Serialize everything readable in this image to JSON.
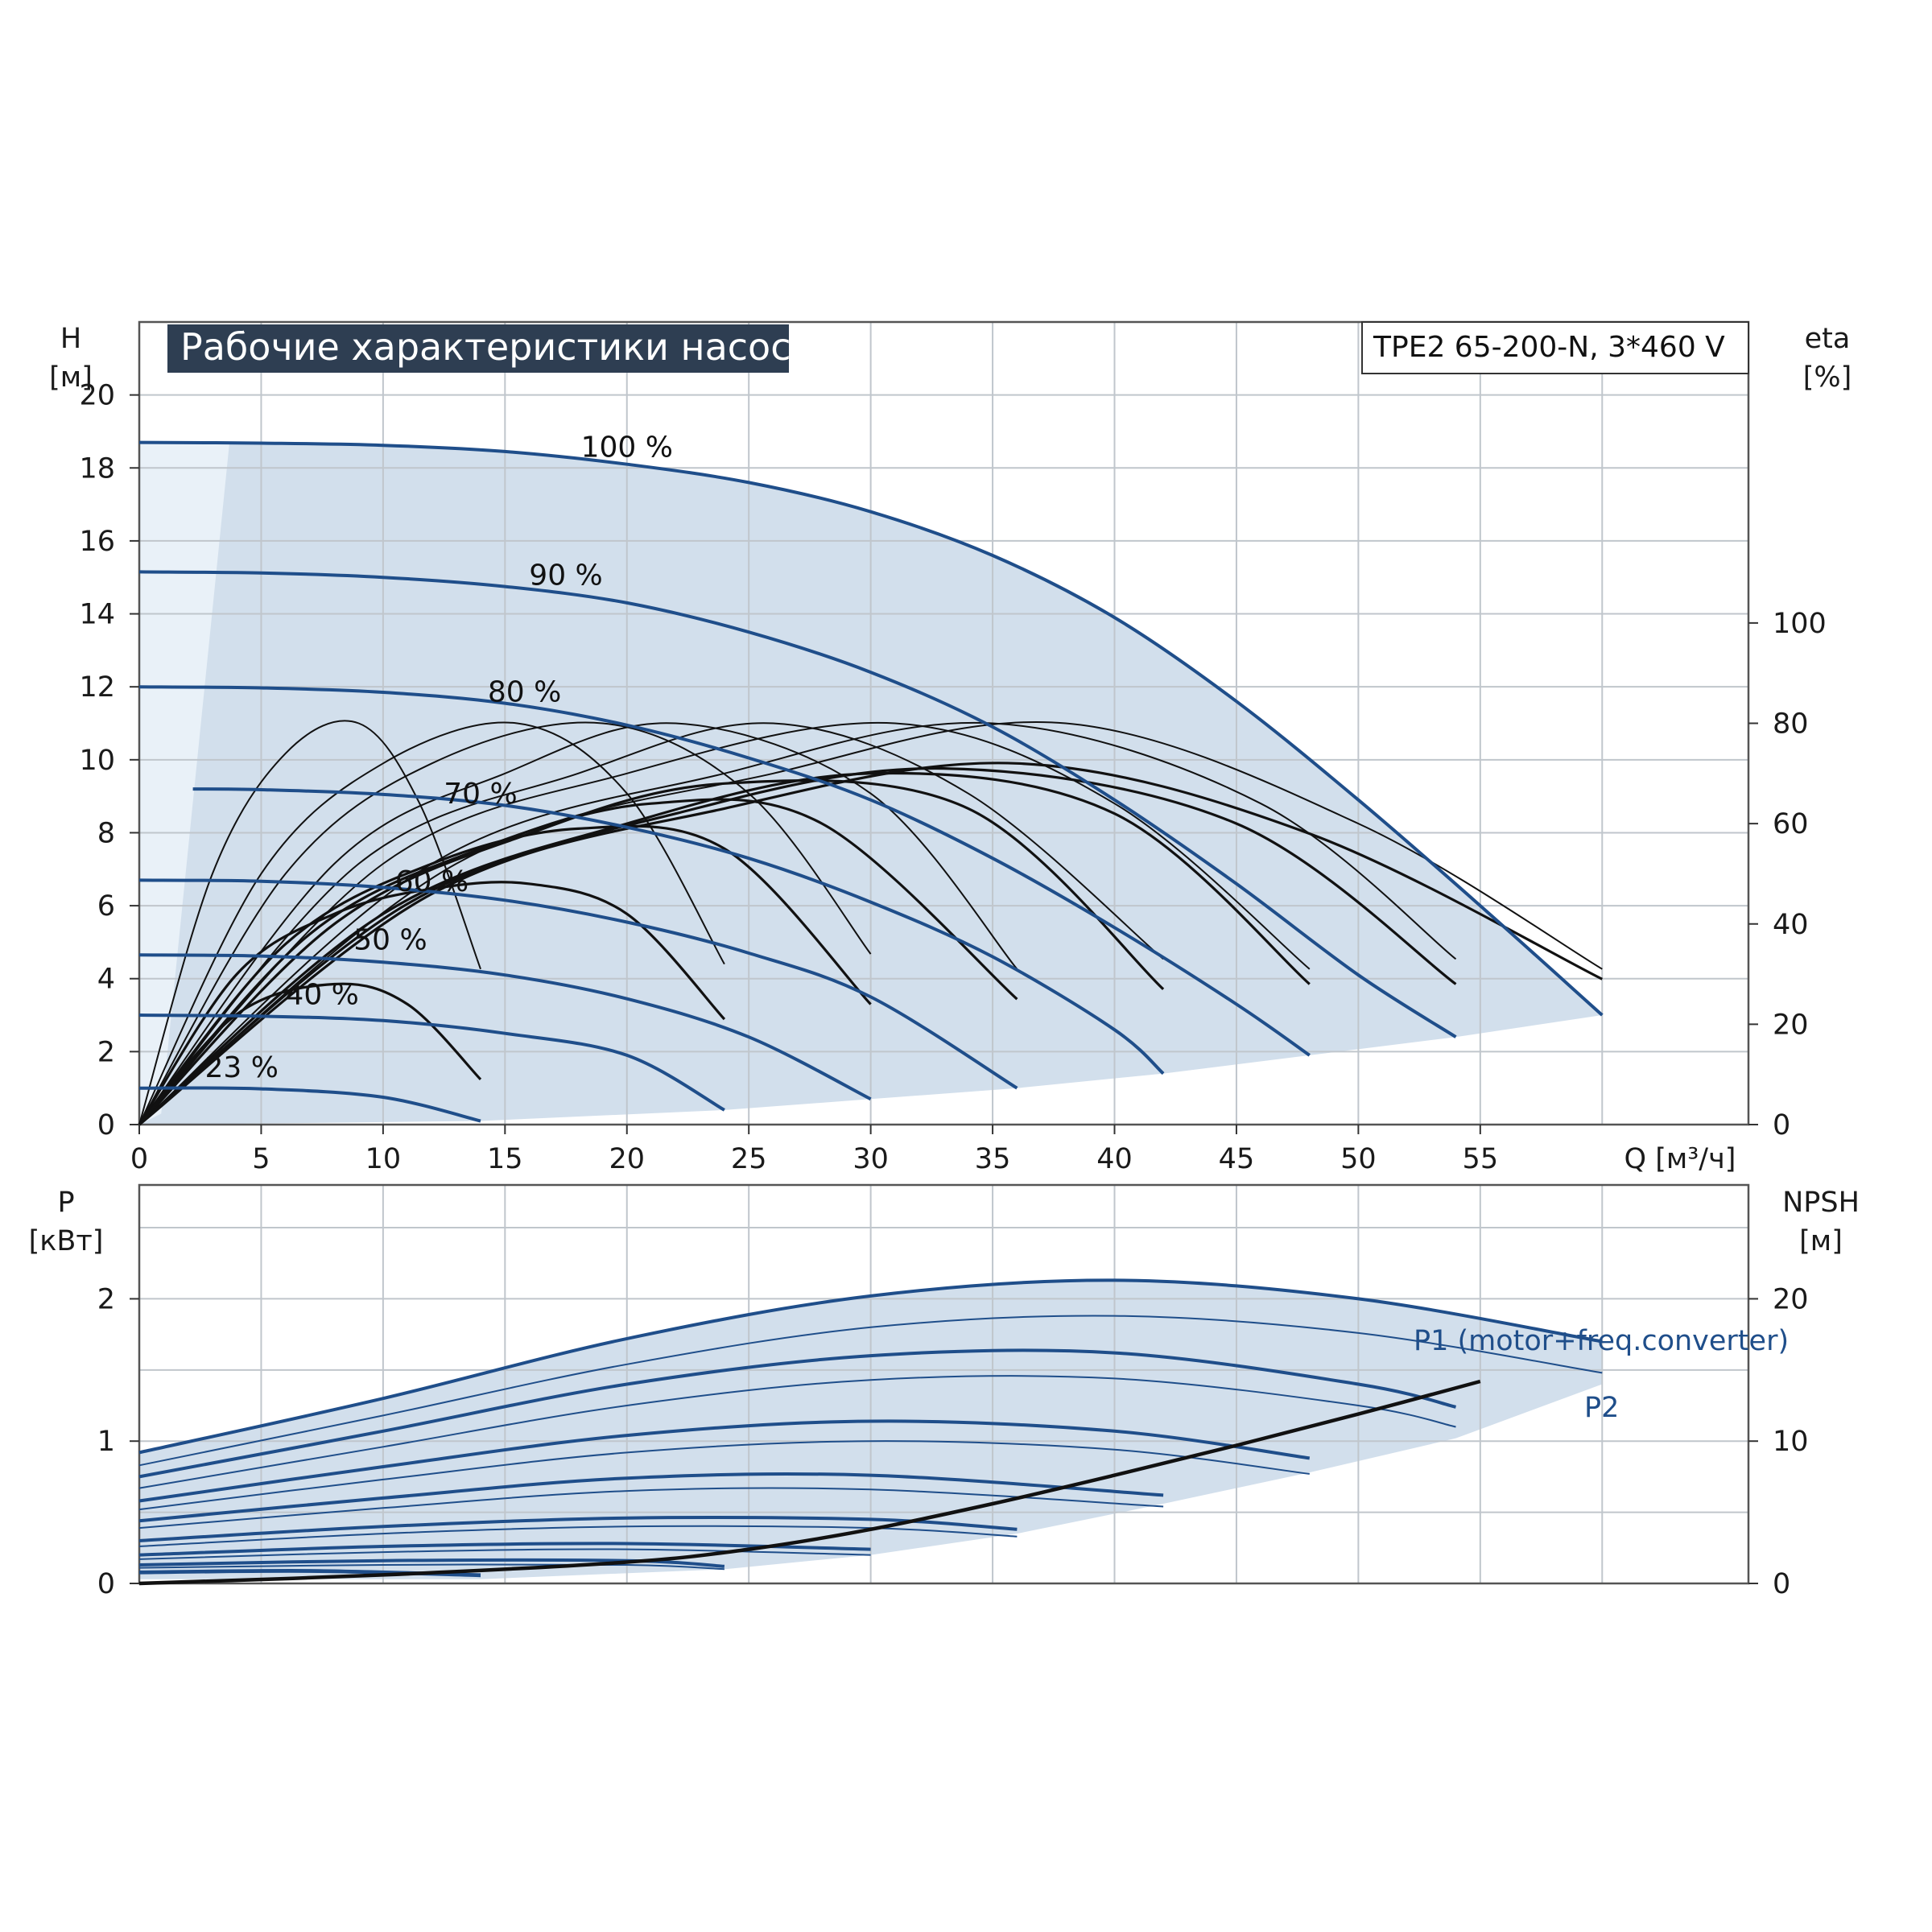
{
  "chart_data": [
    {
      "type": "line",
      "title": "Рабочие характеристики насоса",
      "model": "TPE2 65-200-N, 3*460 V",
      "colors": {
        "envelope": "#d2dfec",
        "envelope_light": "#e9f1f8",
        "curve": "#1f4e8a",
        "efficiency": "#111111",
        "grid": "#c0c6cc",
        "title_bg": "#2e3e52"
      },
      "xlabel": "Q [м³/ч]",
      "ylabel": [
        "H",
        "[м]"
      ],
      "y2label": [
        "eta",
        "[%]"
      ],
      "xlim": [
        0,
        66
      ],
      "ylim": [
        0,
        22
      ],
      "y2lim": [
        0,
        160
      ],
      "grid": true,
      "x_ticks": [
        0,
        5,
        10,
        15,
        20,
        25,
        30,
        35,
        40,
        45,
        50,
        55
      ],
      "y_ticks": [
        0,
        2,
        4,
        6,
        8,
        10,
        12,
        14,
        16,
        18,
        20
      ],
      "y2_ticks": [
        0,
        20,
        40,
        60,
        80,
        100
      ],
      "series": [
        {
          "name": "100 %",
          "label_at": [
            20,
            18.3
          ],
          "x": [
            0,
            5,
            10,
            15,
            20,
            25,
            30,
            35,
            40,
            45,
            50,
            55,
            60
          ],
          "y": [
            18.7,
            18.68,
            18.62,
            18.45,
            18.1,
            17.6,
            16.8,
            15.6,
            13.9,
            11.6,
            8.9,
            6.0,
            3.0
          ]
        },
        {
          "name": "90 %",
          "label_at": [
            17.5,
            14.8
          ],
          "x": [
            0,
            5,
            10,
            15,
            20,
            25,
            30,
            35,
            40,
            45,
            50,
            54
          ],
          "y": [
            15.15,
            15.12,
            15.0,
            14.75,
            14.3,
            13.5,
            12.4,
            10.9,
            8.9,
            6.6,
            4.1,
            2.4
          ]
        },
        {
          "name": "80 %",
          "label_at": [
            15.8,
            11.6
          ],
          "x": [
            0,
            5,
            10,
            15,
            20,
            25,
            30,
            35,
            40,
            45,
            48
          ],
          "y": [
            12.0,
            11.97,
            11.85,
            11.55,
            10.95,
            10.05,
            8.9,
            7.3,
            5.4,
            3.3,
            1.9
          ]
        },
        {
          "name": "70 %",
          "label_at": [
            14,
            8.8
          ],
          "x": [
            2.2,
            5,
            10,
            15,
            20,
            25,
            30,
            35,
            40,
            42
          ],
          "y": [
            9.2,
            9.18,
            9.05,
            8.75,
            8.15,
            7.3,
            6.1,
            4.6,
            2.6,
            1.4
          ]
        },
        {
          "name": "60 %",
          "label_at": [
            12,
            6.4
          ],
          "x": [
            0,
            5,
            10,
            15,
            20,
            25,
            30,
            36
          ],
          "y": [
            6.7,
            6.67,
            6.5,
            6.15,
            5.55,
            4.7,
            3.5,
            1.0
          ]
        },
        {
          "name": "50 %",
          "label_at": [
            10.3,
            4.8
          ],
          "x": [
            0,
            5,
            10,
            15,
            20,
            25,
            30
          ],
          "y": [
            4.65,
            4.62,
            4.45,
            4.1,
            3.45,
            2.4,
            0.7
          ]
        },
        {
          "name": "40 %",
          "label_at": [
            7.5,
            3.3
          ],
          "x": [
            0,
            5,
            10,
            15,
            20,
            24
          ],
          "y": [
            3.0,
            2.97,
            2.85,
            2.5,
            1.9,
            0.4
          ]
        },
        {
          "name": "23 %",
          "label_at": [
            4.2,
            1.3
          ],
          "x": [
            0,
            5,
            10,
            14
          ],
          "y": [
            1.0,
            0.98,
            0.75,
            0.1
          ]
        }
      ],
      "efficiency_series": [
        {
          "x": [
            0,
            3,
            6,
            9,
            11.5,
            14
          ],
          "eta": [
            0,
            50,
            74,
            80,
            64,
            31
          ]
        },
        {
          "x": [
            0,
            5,
            10,
            15.5,
            20,
            24
          ],
          "eta": [
            0,
            50,
            72,
            80,
            66,
            32
          ]
        },
        {
          "x": [
            0,
            6,
            12,
            19,
            25,
            30
          ],
          "eta": [
            0,
            50,
            72,
            80,
            66,
            34
          ]
        },
        {
          "x": [
            0,
            8,
            15,
            22,
            30,
            36
          ],
          "eta": [
            0,
            52,
            70,
            80,
            66,
            31
          ]
        },
        {
          "x": [
            0,
            9,
            18,
            26,
            34,
            42
          ],
          "eta": [
            0,
            52,
            70,
            80,
            66,
            33
          ]
        },
        {
          "x": [
            0,
            10,
            20,
            31,
            40,
            48
          ],
          "eta": [
            0,
            52,
            70,
            80,
            64,
            31
          ]
        },
        {
          "x": [
            0,
            12,
            24,
            35,
            46,
            54
          ],
          "eta": [
            0,
            52,
            70,
            80,
            64,
            33
          ]
        },
        {
          "x": [
            0,
            13,
            26,
            38,
            50,
            60
          ],
          "eta": [
            0,
            52,
            70,
            80,
            60,
            31
          ]
        },
        {
          "x": [
            0,
            4,
            8,
            12,
            16,
            20,
            24
          ],
          "eta": [
            0,
            30,
            42,
            47,
            48,
            42,
            21
          ]
        },
        {
          "x": [
            0,
            6,
            12,
            18,
            24,
            30
          ],
          "eta": [
            0,
            36,
            52,
            59,
            55,
            24
          ]
        },
        {
          "x": [
            0,
            7,
            14,
            21,
            28,
            36
          ],
          "eta": [
            0,
            38,
            55,
            64,
            60,
            25
          ]
        },
        {
          "x": [
            0,
            8,
            16,
            24,
            34,
            42
          ],
          "eta": [
            0,
            40,
            58,
            68,
            63,
            27
          ]
        },
        {
          "x": [
            0,
            10,
            20,
            30,
            40,
            48
          ],
          "eta": [
            0,
            42,
            60,
            70,
            62,
            28
          ]
        },
        {
          "x": [
            0,
            11,
            22,
            33,
            45,
            54
          ],
          "eta": [
            0,
            44,
            62,
            71,
            60,
            28
          ]
        },
        {
          "x": [
            0,
            12,
            24,
            36,
            48,
            60
          ],
          "eta": [
            0,
            46,
            63,
            72,
            58,
            29
          ]
        },
        {
          "x": [
            0,
            4,
            8,
            11,
            14
          ],
          "eta": [
            0,
            22,
            28,
            24,
            9
          ]
        }
      ]
    },
    {
      "type": "line",
      "ylabel": [
        "P",
        "[кВт]"
      ],
      "y2label": [
        "NPSH",
        "[м]"
      ],
      "xlim": [
        0,
        66
      ],
      "ylim": [
        0,
        2.8
      ],
      "y2lim": [
        0,
        28
      ],
      "grid": true,
      "y_ticks": [
        0,
        1,
        2
      ],
      "y2_ticks": [
        0,
        10,
        20
      ],
      "series_labels": {
        "p1": "P1 (motor+freq.converter)",
        "p2": "P2"
      },
      "p1_series": [
        {
          "x": [
            0,
            10,
            20,
            30,
            40,
            50,
            60
          ],
          "y": [
            0.92,
            1.3,
            1.72,
            2.02,
            2.13,
            2.0,
            1.7
          ]
        },
        {
          "x": [
            0,
            10,
            20,
            30,
            40,
            50,
            54
          ],
          "y": [
            0.75,
            1.07,
            1.4,
            1.6,
            1.62,
            1.4,
            1.24
          ]
        },
        {
          "x": [
            0,
            10,
            20,
            30,
            40,
            48
          ],
          "y": [
            0.58,
            0.82,
            1.04,
            1.14,
            1.07,
            0.88
          ]
        },
        {
          "x": [
            0,
            10,
            20,
            30,
            42
          ],
          "y": [
            0.44,
            0.6,
            0.74,
            0.76,
            0.62
          ]
        },
        {
          "x": [
            0,
            10,
            20,
            30,
            36
          ],
          "y": [
            0.3,
            0.4,
            0.46,
            0.45,
            0.38
          ]
        },
        {
          "x": [
            0,
            10,
            20,
            30
          ],
          "y": [
            0.2,
            0.26,
            0.28,
            0.24
          ]
        },
        {
          "x": [
            0,
            10,
            20,
            24
          ],
          "y": [
            0.13,
            0.16,
            0.16,
            0.12
          ]
        },
        {
          "x": [
            0,
            7,
            14
          ],
          "y": [
            0.08,
            0.09,
            0.06
          ]
        }
      ],
      "p2_series": [
        {
          "x": [
            0,
            10,
            20,
            30,
            40,
            50,
            60
          ],
          "y": [
            0.83,
            1.18,
            1.54,
            1.8,
            1.88,
            1.76,
            1.48
          ]
        },
        {
          "x": [
            0,
            10,
            20,
            30,
            40,
            50,
            54
          ],
          "y": [
            0.67,
            0.96,
            1.25,
            1.43,
            1.44,
            1.25,
            1.1
          ]
        },
        {
          "x": [
            0,
            10,
            20,
            30,
            40,
            48
          ],
          "y": [
            0.52,
            0.73,
            0.92,
            1.0,
            0.94,
            0.77
          ]
        },
        {
          "x": [
            0,
            10,
            20,
            30,
            42
          ],
          "y": [
            0.39,
            0.53,
            0.65,
            0.66,
            0.54
          ]
        },
        {
          "x": [
            0,
            10,
            20,
            30,
            36
          ],
          "y": [
            0.26,
            0.35,
            0.4,
            0.39,
            0.33
          ]
        },
        {
          "x": [
            0,
            10,
            20,
            30
          ],
          "y": [
            0.17,
            0.22,
            0.24,
            0.2
          ]
        },
        {
          "x": [
            0,
            10,
            20,
            24
          ],
          "y": [
            0.11,
            0.13,
            0.13,
            0.1
          ]
        },
        {
          "x": [
            0,
            7,
            14
          ],
          "y": [
            0.07,
            0.08,
            0.05
          ]
        }
      ],
      "npsh": {
        "x": [
          0,
          10,
          20,
          25,
          30,
          35,
          40,
          45,
          50,
          55
        ],
        "y": [
          0,
          0.6,
          1.5,
          2.4,
          3.8,
          5.6,
          7.6,
          9.7,
          11.9,
          14.2
        ]
      }
    }
  ]
}
